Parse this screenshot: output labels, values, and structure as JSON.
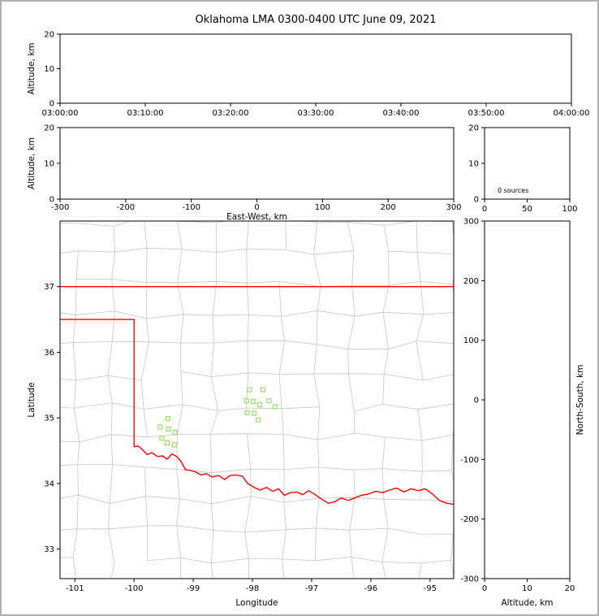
{
  "title": "Oklahoma LMA 0300-0400 UTC June 09, 2021",
  "colors": {
    "state_border": "#ff0000",
    "county_line": "#c6c6c6",
    "station_marker": "#8ce05a",
    "axis": "#000000",
    "background": "#ffffff",
    "frame_border": "#b0b0b0"
  },
  "chart_data": [
    {
      "id": "time_altitude",
      "type": "scatter",
      "title": "",
      "xlabel": "",
      "ylabel": "Altitude, km",
      "xtick_labels": [
        "03:00:00",
        "03:10:00",
        "03:20:00",
        "03:30:00",
        "03:40:00",
        "03:50:00",
        "04:00:00"
      ],
      "ylim": [
        0,
        20
      ],
      "yticks": [
        0,
        10,
        20
      ],
      "points": []
    },
    {
      "id": "eastwest_altitude",
      "type": "scatter",
      "xlabel": "East-West, km",
      "ylabel": "Altitude, km",
      "xlim": [
        -300,
        300
      ],
      "xticks": [
        -300,
        -200,
        -100,
        0,
        100,
        200,
        300
      ],
      "ylim": [
        0,
        20
      ],
      "yticks": [
        0,
        10,
        20
      ],
      "points": []
    },
    {
      "id": "altitude_histogram",
      "type": "scatter",
      "xlim": [
        0,
        100
      ],
      "xticks": [
        0,
        50,
        100
      ],
      "ylim": [
        0,
        20
      ],
      "yticks": [
        0,
        10,
        20
      ],
      "annotation": "0 sources",
      "points": []
    },
    {
      "id": "plan_view_map",
      "type": "scatter",
      "xlabel": "Longitude",
      "ylabel": "Latitude",
      "xlim": [
        -101.25,
        -94.6
      ],
      "ylim": [
        32.55,
        38.0
      ],
      "xticks": [
        -101,
        -100,
        -99,
        -98,
        -97,
        -96,
        -95
      ],
      "yticks": [
        33,
        34,
        35,
        36,
        37
      ],
      "stations": [
        [
          -98.05,
          35.43
        ],
        [
          -97.82,
          35.43
        ],
        [
          -98.1,
          35.26
        ],
        [
          -97.99,
          35.25
        ],
        [
          -97.88,
          35.2
        ],
        [
          -97.72,
          35.26
        ],
        [
          -97.62,
          35.17
        ],
        [
          -98.09,
          35.08
        ],
        [
          -97.97,
          35.07
        ],
        [
          -97.9,
          34.97
        ],
        [
          -99.43,
          34.99
        ],
        [
          -99.56,
          34.86
        ],
        [
          -99.42,
          34.83
        ],
        [
          -99.31,
          34.78
        ],
        [
          -99.53,
          34.69
        ],
        [
          -99.44,
          34.62
        ],
        [
          -99.32,
          34.59
        ]
      ],
      "state_border": {
        "north_lat": 37.0,
        "panhandle_south_lat": 36.5,
        "west_lon": -100.0,
        "red_river": [
          [
            -100.0,
            34.56
          ],
          [
            -99.93,
            34.57
          ],
          [
            -99.85,
            34.51
          ],
          [
            -99.78,
            34.44
          ],
          [
            -99.7,
            34.47
          ],
          [
            -99.6,
            34.41
          ],
          [
            -99.52,
            34.42
          ],
          [
            -99.44,
            34.37
          ],
          [
            -99.36,
            34.45
          ],
          [
            -99.28,
            34.41
          ],
          [
            -99.21,
            34.34
          ],
          [
            -99.13,
            34.21
          ],
          [
            -99.05,
            34.2
          ],
          [
            -98.97,
            34.18
          ],
          [
            -98.87,
            34.13
          ],
          [
            -98.78,
            34.15
          ],
          [
            -98.68,
            34.1
          ],
          [
            -98.57,
            34.12
          ],
          [
            -98.47,
            34.06
          ],
          [
            -98.38,
            34.12
          ],
          [
            -98.28,
            34.13
          ],
          [
            -98.17,
            34.11
          ],
          [
            -98.08,
            34.0
          ],
          [
            -97.97,
            33.94
          ],
          [
            -97.87,
            33.9
          ],
          [
            -97.76,
            33.94
          ],
          [
            -97.66,
            33.88
          ],
          [
            -97.56,
            33.92
          ],
          [
            -97.46,
            33.82
          ],
          [
            -97.36,
            33.86
          ],
          [
            -97.25,
            33.87
          ],
          [
            -97.15,
            33.83
          ],
          [
            -97.05,
            33.89
          ],
          [
            -96.94,
            33.83
          ],
          [
            -96.83,
            33.76
          ],
          [
            -96.72,
            33.7
          ],
          [
            -96.61,
            33.72
          ],
          [
            -96.5,
            33.78
          ],
          [
            -96.38,
            33.74
          ],
          [
            -96.27,
            33.78
          ],
          [
            -96.16,
            33.82
          ],
          [
            -96.04,
            33.84
          ],
          [
            -95.92,
            33.88
          ],
          [
            -95.8,
            33.86
          ],
          [
            -95.68,
            33.9
          ],
          [
            -95.56,
            33.93
          ],
          [
            -95.44,
            33.87
          ],
          [
            -95.32,
            33.92
          ],
          [
            -95.2,
            33.89
          ],
          [
            -95.08,
            33.92
          ],
          [
            -94.96,
            33.84
          ],
          [
            -94.84,
            33.74
          ],
          [
            -94.72,
            33.7
          ],
          [
            -94.58,
            33.68
          ]
        ]
      },
      "county_grid": {
        "seed": 7,
        "lon_start": -101.55,
        "lon_end": -94.35,
        "lat_start": 32.35,
        "lat_end": 38.15,
        "cell_deg": 0.58,
        "cell_deg_lat": 0.47,
        "jitter": 0.07,
        "skip": 0.07
      },
      "points": []
    },
    {
      "id": "altitude_northsouth",
      "type": "scatter",
      "xlabel": "Altitude, km",
      "ylabel_right": "North-South, km",
      "xlim": [
        0,
        20
      ],
      "xticks": [
        0,
        10,
        20
      ],
      "ylim": [
        -300,
        300
      ],
      "yticks": [
        -300,
        -200,
        -100,
        0,
        100,
        200,
        300
      ],
      "points": []
    }
  ]
}
